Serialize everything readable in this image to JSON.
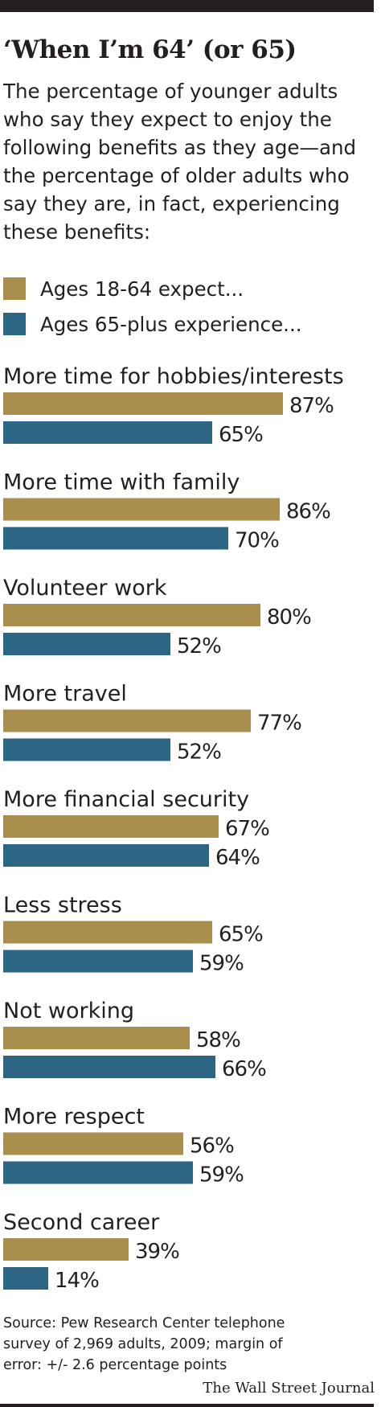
{
  "header": {
    "title": "‘When I’m 64’ (or 65)",
    "subtitle": "The percentage of younger adults who say they expect to enjoy the following benefits as they age—and the percentage of older adults who say they are, in fact, experiencing these benefits:"
  },
  "colors": {
    "expect": "#a98e4e",
    "experience": "#2d6584",
    "rule": "#231f20"
  },
  "chart_data": {
    "type": "bar",
    "orientation": "horizontal",
    "categories": [
      "More time for hobbies/interests",
      "More time with family",
      "Volunteer work",
      "More travel",
      "More financial security",
      "Less stress",
      "Not working",
      "More respect",
      "Second career"
    ],
    "series": [
      {
        "name": "Ages 18-64 expect...",
        "values": [
          87,
          86,
          80,
          77,
          67,
          65,
          58,
          56,
          39
        ],
        "labels": [
          "87%",
          "86%",
          "80%",
          "77%",
          "67%",
          "65%",
          "58%",
          "56%",
          "39%"
        ]
      },
      {
        "name": "Ages 65-plus experience...",
        "values": [
          65,
          70,
          52,
          52,
          64,
          59,
          66,
          59,
          14
        ],
        "labels": [
          "65%",
          "70%",
          "52%",
          "52%",
          "64%",
          "59%",
          "66%",
          "59%",
          "14%"
        ]
      }
    ],
    "xlim": [
      0,
      100
    ],
    "grid": false,
    "legend": "top"
  },
  "footer": {
    "source": "Source: Pew Research Center telephone survey of 2,969 adults, 2009; margin of error: +/- 2.6 percentage points",
    "credit": "The Wall Street Journal"
  }
}
